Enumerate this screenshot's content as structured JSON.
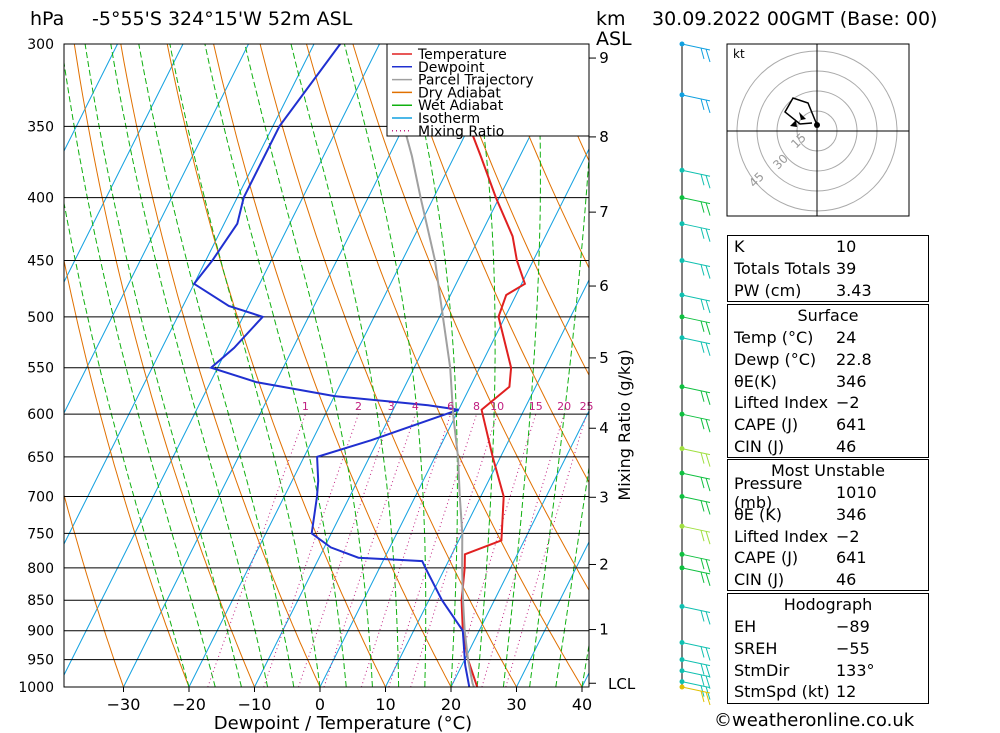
{
  "header": {
    "pressure_unit": "hPa",
    "location": "-5°55'S  324°15'W  52m  ASL",
    "height_unit_line1": "km",
    "height_unit_line2": "ASL",
    "datetime": "30.09.2022  00GMT  (Base: 00)"
  },
  "chart_data": {
    "type": "line",
    "subtype": "skew-T log-P thermodynamic diagram",
    "xlabel": "Dewpoint / Temperature (°C)",
    "ylabel": "hPa",
    "right_axis_label": "Mixing Ratio (g/kg)",
    "xlim": [
      -40,
      40
    ],
    "ylim": [
      1000,
      300
    ],
    "x_ticks": [
      -30,
      -20,
      -10,
      0,
      10,
      20,
      30,
      40
    ],
    "x_tick_labels": [
      "−30",
      "−20",
      "−10",
      "0",
      "10",
      "20",
      "30",
      "40"
    ],
    "pressure_levels": [
      300,
      350,
      400,
      450,
      500,
      550,
      600,
      650,
      700,
      750,
      800,
      850,
      900,
      950,
      1000
    ],
    "height_km_ticks": [
      {
        "km": "1",
        "p": 898
      },
      {
        "km": "2",
        "p": 795
      },
      {
        "km": "3",
        "p": 701
      },
      {
        "km": "4",
        "p": 616
      },
      {
        "km": "5",
        "p": 540
      },
      {
        "km": "6",
        "p": 472
      },
      {
        "km": "7",
        "p": 411
      },
      {
        "km": "8",
        "p": 357
      },
      {
        "km": "9",
        "p": 308
      }
    ],
    "lcl": {
      "label": "LCL",
      "p": 993
    },
    "mixing_ratio_labels": [
      "1",
      "2",
      "3",
      "4",
      "6",
      "8",
      "10",
      "15",
      "20",
      "25"
    ],
    "legend": [
      {
        "name": "Temperature",
        "color": "#e02020",
        "style": "solid"
      },
      {
        "name": "Dewpoint",
        "color": "#2030d0",
        "style": "solid"
      },
      {
        "name": "Parcel Trajectory",
        "color": "#a0a0a0",
        "style": "solid"
      },
      {
        "name": "Dry Adiabat",
        "color": "#e07000",
        "style": "solid"
      },
      {
        "name": "Wet Adiabat",
        "color": "#10b010",
        "style": "solid"
      },
      {
        "name": "Isotherm",
        "color": "#10a0e0",
        "style": "solid"
      },
      {
        "name": "Mixing Ratio",
        "color": "#c02080",
        "style": "dotted"
      }
    ],
    "series": [
      {
        "name": "Temperature",
        "color": "#e02020",
        "points": [
          [
            1000,
            24
          ],
          [
            950,
            20.5
          ],
          [
            900,
            17.5
          ],
          [
            850,
            15
          ],
          [
            800,
            13
          ],
          [
            780,
            12
          ],
          [
            760,
            16.5
          ],
          [
            700,
            13.5
          ],
          [
            650,
            8.8
          ],
          [
            600,
            4
          ],
          [
            595,
            3.5
          ],
          [
            570,
            6
          ],
          [
            550,
            4.8
          ],
          [
            500,
            -1
          ],
          [
            480,
            -1.5
          ],
          [
            470,
            0.5
          ],
          [
            450,
            -2.5
          ],
          [
            430,
            -5
          ],
          [
            400,
            -10.5
          ],
          [
            370,
            -16
          ],
          [
            350,
            -20
          ],
          [
            320,
            -25.5
          ],
          [
            300,
            -30
          ]
        ]
      },
      {
        "name": "Dewpoint",
        "color": "#2030d0",
        "points": [
          [
            1000,
            22.8
          ],
          [
            960,
            20.5
          ],
          [
            900,
            17.5
          ],
          [
            850,
            12
          ],
          [
            800,
            7
          ],
          [
            790,
            6
          ],
          [
            785,
            -4
          ],
          [
            770,
            -9
          ],
          [
            750,
            -13
          ],
          [
            700,
            -15
          ],
          [
            680,
            -16
          ],
          [
            650,
            -18
          ],
          [
            630,
            -11
          ],
          [
            595,
            0
          ],
          [
            590,
            -5
          ],
          [
            580,
            -20
          ],
          [
            565,
            -33
          ],
          [
            550,
            -41
          ],
          [
            530,
            -39
          ],
          [
            500,
            -37
          ],
          [
            490,
            -43
          ],
          [
            470,
            -50
          ],
          [
            450,
            -49
          ],
          [
            420,
            -48
          ],
          [
            400,
            -49
          ],
          [
            350,
            -49
          ],
          [
            300,
            -46
          ]
        ]
      },
      {
        "name": "Parcel Trajectory",
        "color": "#a0a0a0",
        "points": [
          [
            1000,
            23.5
          ],
          [
            993,
            23
          ],
          [
            950,
            20.5
          ],
          [
            900,
            17.8
          ],
          [
            850,
            15.2
          ],
          [
            800,
            12.6
          ],
          [
            750,
            10
          ],
          [
            700,
            6.8
          ],
          [
            650,
            3.5
          ],
          [
            600,
            -0.5
          ],
          [
            550,
            -4.5
          ],
          [
            500,
            -9.5
          ],
          [
            450,
            -15
          ],
          [
            400,
            -22
          ],
          [
            370,
            -26.5
          ],
          [
            350,
            -30
          ],
          [
            300,
            -36
          ]
        ]
      }
    ],
    "wind_barbs": [
      {
        "p": 300,
        "color": "#10a0e0"
      },
      {
        "p": 330,
        "color": "#10a0e0"
      },
      {
        "p": 380,
        "color": "#10c0b0"
      },
      {
        "p": 400,
        "color": "#10c040"
      },
      {
        "p": 420,
        "color": "#10c0b0"
      },
      {
        "p": 450,
        "color": "#10c0b0"
      },
      {
        "p": 480,
        "color": "#10c0b0"
      },
      {
        "p": 500,
        "color": "#10c040"
      },
      {
        "p": 520,
        "color": "#10c0b0"
      },
      {
        "p": 570,
        "color": "#10c040"
      },
      {
        "p": 600,
        "color": "#10c040"
      },
      {
        "p": 640,
        "color": "#a0e040"
      },
      {
        "p": 670,
        "color": "#10c040"
      },
      {
        "p": 700,
        "color": "#10c040"
      },
      {
        "p": 740,
        "color": "#a0e040"
      },
      {
        "p": 780,
        "color": "#10c040"
      },
      {
        "p": 800,
        "color": "#10c040"
      },
      {
        "p": 860,
        "color": "#10c0b0"
      },
      {
        "p": 920,
        "color": "#10c0b0"
      },
      {
        "p": 950,
        "color": "#10c0b0"
      },
      {
        "p": 970,
        "color": "#10c0b0"
      },
      {
        "p": 990,
        "color": "#10c0b0"
      },
      {
        "p": 1000,
        "color": "#e0c000"
      }
    ]
  },
  "hodograph": {
    "unit": "kt",
    "ring_labels": [
      "15",
      "30",
      "45"
    ]
  },
  "indices": [
    {
      "label": "K",
      "value": "10"
    },
    {
      "label": "Totals Totals",
      "value": "39"
    },
    {
      "label": "PW (cm)",
      "value": "3.43"
    }
  ],
  "surface": {
    "title": "Surface",
    "rows": [
      {
        "label": "Temp (°C)",
        "value": "24"
      },
      {
        "label": "Dewp (°C)",
        "value": "22.8"
      },
      {
        "label": "θE(K)",
        "value": "346"
      },
      {
        "label": "Lifted Index",
        "value": "−2"
      },
      {
        "label": "CAPE (J)",
        "value": "641"
      },
      {
        "label": "CIN (J)",
        "value": "46"
      }
    ]
  },
  "most_unstable": {
    "title": "Most Unstable",
    "rows": [
      {
        "label": "Pressure (mb)",
        "value": "1010"
      },
      {
        "label": "θE (K)",
        "value": "346"
      },
      {
        "label": "Lifted Index",
        "value": "−2"
      },
      {
        "label": "CAPE (J)",
        "value": "641"
      },
      {
        "label": "CIN (J)",
        "value": "46"
      }
    ]
  },
  "hodograph_table": {
    "title": "Hodograph",
    "rows": [
      {
        "label": "EH",
        "value": "−89"
      },
      {
        "label": "SREH",
        "value": "−55"
      },
      {
        "label": "StmDir",
        "value": "133°"
      },
      {
        "label": "StmSpd (kt)",
        "value": "12"
      }
    ]
  },
  "credit": "©weatheronline.co.uk"
}
